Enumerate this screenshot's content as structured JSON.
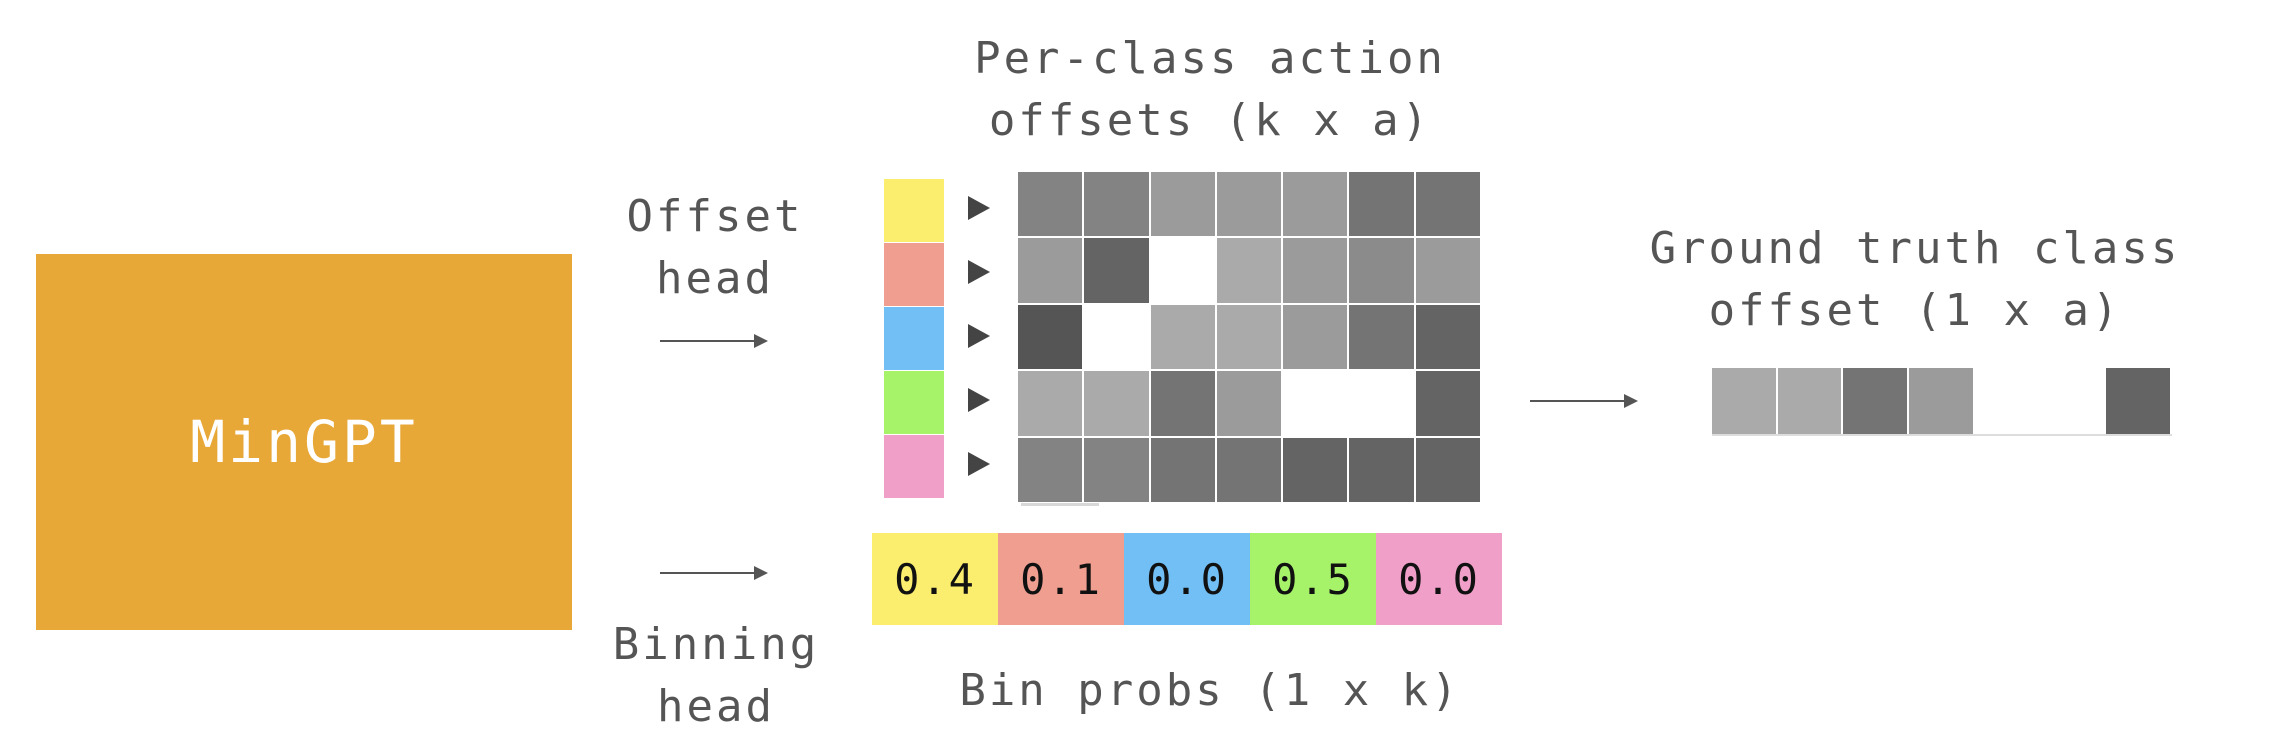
{
  "model": {
    "label": "MinGPT"
  },
  "offset_head": {
    "line1": "Offset",
    "line2": "head"
  },
  "binning_head": {
    "line1": "Binning",
    "line2": "head"
  },
  "offsets_title": {
    "line1": "Per-class action",
    "line2": "offsets (k x a)"
  },
  "gt_title": {
    "line1": "Ground truth class",
    "line2": "offset (1 x a)"
  },
  "bin_probs_label": "Bin probs (1 x k)",
  "class_colors": [
    "#fbee6e",
    "#ef9e90",
    "#71bff5",
    "#a6f36a",
    "#f09fc9"
  ],
  "offset_grid": [
    [
      "#838383",
      "#838383",
      "#9b9b9b",
      "#9b9b9b",
      "#9b9b9b",
      "#747474",
      "#747474"
    ],
    [
      "#9b9b9b",
      "#646464",
      "#ffffff",
      "#aaaaaa",
      "#9b9b9b",
      "#8b8b8b",
      "#9b9b9b"
    ],
    [
      "#555555",
      "#ffffff",
      "#aaaaaa",
      "#aaaaaa",
      "#9b9b9b",
      "#747474",
      "#646464"
    ],
    [
      "#aaaaaa",
      "#aaaaaa",
      "#747474",
      "#9b9b9b",
      "#ffffff",
      "#ffffff",
      "#646464"
    ],
    [
      "#838383",
      "#838383",
      "#747474",
      "#747474",
      "#646464",
      "#646464",
      "#646464"
    ]
  ],
  "gt_row": [
    "#aaaaaa",
    "#aaaaaa",
    "#747474",
    "#9b9b9b",
    "#ffffff",
    "#ffffff",
    "#646464"
  ],
  "bin_probs": [
    {
      "value": "0.4",
      "color": "#fbee6e"
    },
    {
      "value": "0.1",
      "color": "#ef9e90"
    },
    {
      "value": "0.0",
      "color": "#71bff5"
    },
    {
      "value": "0.5",
      "color": "#a6f36a"
    },
    {
      "value": "0.0",
      "color": "#f09fc9"
    }
  ]
}
